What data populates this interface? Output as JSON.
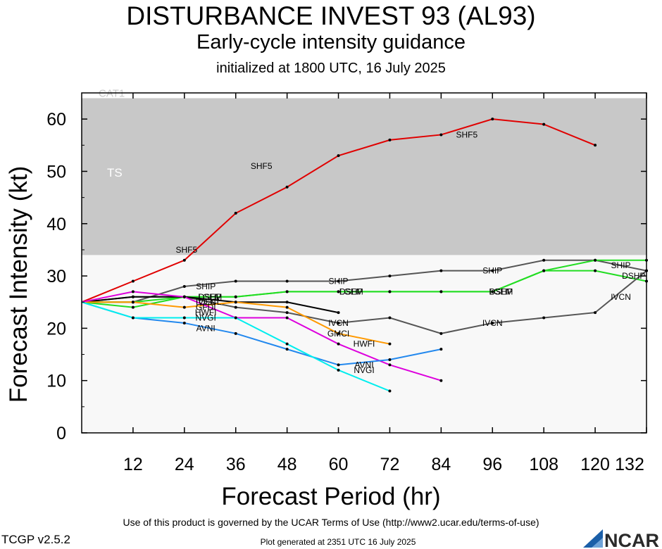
{
  "header": {
    "title": "DISTURBANCE INVEST 93 (AL93)",
    "subtitle": "Early-cycle intensity guidance",
    "initialized": "initialized at 1800 UTC, 16 July 2025"
  },
  "footer": {
    "terms": "Use of this product is governed by the UCAR Terms of Use (http://www2.ucar.edu/terms-of-use)",
    "version": "TCGP v2.5.2",
    "generated": "Plot generated at 2351 UTC   16 July 2025",
    "logo_text": "NCAR"
  },
  "chart_data": {
    "type": "line",
    "xlabel": "Forecast Period (hr)",
    "ylabel": "Forecast Intensity (kt)",
    "xlim": [
      0,
      132
    ],
    "ylim": [
      0,
      65
    ],
    "xticks": [
      12,
      24,
      36,
      48,
      60,
      72,
      84,
      96,
      108,
      120,
      132
    ],
    "yticks": [
      0,
      10,
      20,
      30,
      40,
      50,
      60
    ],
    "grid": false,
    "bands": [
      {
        "label": "TS",
        "from": 34,
        "to": 64,
        "color": "#c8c8c8"
      },
      {
        "label": "CAT1",
        "from": 64,
        "to": 65,
        "color": "#ffffff"
      }
    ],
    "series": [
      {
        "name": "SHF5",
        "color": "#e00000",
        "x": [
          0,
          12,
          24,
          36,
          48,
          60,
          72,
          84,
          96,
          108,
          120
        ],
        "y": [
          25,
          29,
          33,
          42,
          47,
          53,
          56,
          57,
          60,
          59,
          55
        ]
      },
      {
        "name": "SHIP",
        "color": "#555555",
        "x": [
          0,
          12,
          24,
          36,
          48,
          60,
          72,
          84,
          96,
          108,
          120,
          132
        ],
        "y": [
          25,
          25,
          28,
          29,
          29,
          29,
          30,
          31,
          31,
          33,
          33,
          31
        ]
      },
      {
        "name": "DSHP",
        "color": "#22dd22",
        "x": [
          0,
          12,
          24,
          36,
          48,
          60,
          72,
          84,
          96,
          108,
          120,
          132
        ],
        "y": [
          25,
          24,
          26,
          26,
          27,
          27,
          27,
          27,
          27,
          31,
          31,
          29
        ]
      },
      {
        "name": "LGEM",
        "color": "#22dd22",
        "x": [
          0,
          12,
          24,
          36,
          48,
          60,
          72,
          84,
          96,
          108,
          120,
          132
        ],
        "y": [
          25,
          25,
          26,
          26,
          27,
          27,
          27,
          27,
          27,
          31,
          33,
          33
        ]
      },
      {
        "name": "IVCN",
        "color": "#555555",
        "x": [
          0,
          12,
          24,
          36,
          48,
          60,
          72,
          84,
          96,
          108,
          120,
          132
        ],
        "y": [
          25,
          26,
          26,
          24,
          23,
          21,
          22,
          19,
          21,
          22,
          23,
          31
        ]
      },
      {
        "name": "GFDI",
        "color": "#000000",
        "x": [
          0,
          12,
          24,
          36,
          48,
          60
        ],
        "y": [
          25,
          26,
          26,
          25,
          25,
          23
        ]
      },
      {
        "name": "GMCI",
        "color": "#ff9900",
        "x": [
          0,
          12,
          24,
          36,
          48,
          60,
          72
        ],
        "y": [
          25,
          25,
          24,
          25,
          24,
          19,
          17
        ]
      },
      {
        "name": "HWFI",
        "color": "#dd00dd",
        "x": [
          0,
          12,
          24,
          36,
          48,
          60,
          72,
          84
        ],
        "y": [
          25,
          27,
          26,
          22,
          22,
          17,
          13,
          10
        ]
      },
      {
        "name": "AVNI",
        "color": "#2288ee",
        "x": [
          0,
          12,
          24,
          36,
          48,
          60,
          72,
          84
        ],
        "y": [
          25,
          22,
          21,
          19,
          16,
          13,
          14,
          16
        ]
      },
      {
        "name": "NVGI",
        "color": "#00eeee",
        "x": [
          0,
          12,
          24,
          36,
          48,
          60,
          72
        ],
        "y": [
          25,
          22,
          22,
          22,
          17,
          12,
          8
        ]
      }
    ],
    "labels": [
      {
        "text": "SHF5",
        "x": 24.5,
        "y": 35
      },
      {
        "text": "SHF5",
        "x": 42,
        "y": 51
      },
      {
        "text": "SHF5",
        "x": 90,
        "y": 57
      },
      {
        "text": "SHIP",
        "x": 29,
        "y": 28
      },
      {
        "text": "SHIP",
        "x": 60,
        "y": 29
      },
      {
        "text": "SHIP",
        "x": 96,
        "y": 31
      },
      {
        "text": "SHIP",
        "x": 126,
        "y": 32
      },
      {
        "text": "DSHP",
        "x": 30,
        "y": 26
      },
      {
        "text": "DSHP",
        "x": 63,
        "y": 27
      },
      {
        "text": "DSHP",
        "x": 98,
        "y": 27
      },
      {
        "text": "DSHP",
        "x": 129,
        "y": 30
      },
      {
        "text": "LGEM",
        "x": 30,
        "y": 26
      },
      {
        "text": "LGEM",
        "x": 63,
        "y": 27
      },
      {
        "text": "LGEM",
        "x": 98,
        "y": 27
      },
      {
        "text": "OFCL",
        "x": 30,
        "y": 25
      },
      {
        "text": "IVCN",
        "x": 29,
        "y": 25
      },
      {
        "text": "IVCN",
        "x": 60,
        "y": 21
      },
      {
        "text": "IVCN",
        "x": 96,
        "y": 21
      },
      {
        "text": "IVCN",
        "x": 126,
        "y": 26
      },
      {
        "text": "GFDI",
        "x": 29,
        "y": 24
      },
      {
        "text": "GMCI",
        "x": 60,
        "y": 19
      },
      {
        "text": "HWFI",
        "x": 29,
        "y": 23
      },
      {
        "text": "HWFI",
        "x": 66,
        "y": 17
      },
      {
        "text": "AVNI",
        "x": 29,
        "y": 20
      },
      {
        "text": "AVNI",
        "x": 66,
        "y": 13
      },
      {
        "text": "NVGI",
        "x": 29,
        "y": 22
      },
      {
        "text": "NVGI",
        "x": 66,
        "y": 12
      }
    ]
  }
}
